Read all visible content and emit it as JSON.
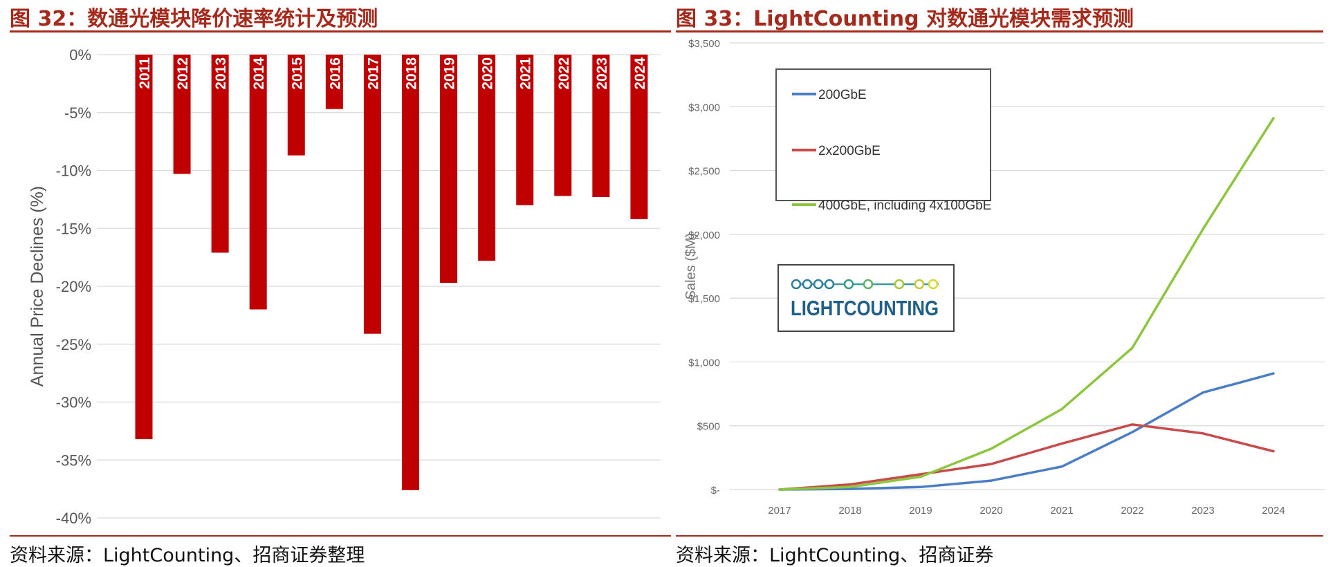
{
  "left": {
    "title": "图 32：数通光模块降价速率统计及预测",
    "source": "资料来源：LightCounting、招商证券整理"
  },
  "right": {
    "title": "图 33：LightCounting 对数通光模块需求预测",
    "source": "资料来源：LightCounting、招商证券",
    "logo_text": "LIGHTCOUNTING"
  },
  "chart_data": [
    {
      "type": "bar",
      "categories": [
        "2011",
        "2012",
        "2013",
        "2014",
        "2015",
        "2016",
        "2017",
        "2018",
        "2019",
        "2020",
        "2021",
        "2022",
        "2023",
        "2024"
      ],
      "values": [
        -33.2,
        -10.3,
        -17.1,
        -22.0,
        -8.7,
        -4.7,
        -24.1,
        -37.6,
        -19.7,
        -17.8,
        -13.0,
        -12.2,
        -12.3,
        -14.2
      ],
      "xlabel": "",
      "ylabel": "Annual Price Declines (%)",
      "ylim": [
        -40,
        0
      ],
      "yticks": [
        0,
        -5,
        -10,
        -15,
        -20,
        -25,
        -30,
        -35,
        -40
      ],
      "ytick_labels": [
        "0%",
        "-5%",
        "-10%",
        "-15%",
        "-20%",
        "-25%",
        "-30%",
        "-35%",
        "-40%"
      ],
      "bar_color": "#c00000",
      "grid": true,
      "labels_inside_bars": true
    },
    {
      "type": "line",
      "x": [
        "2017",
        "2018",
        "2019",
        "2020",
        "2021",
        "2022",
        "2023",
        "2024"
      ],
      "series": [
        {
          "name": "200GbE",
          "color": "#4a7dc4",
          "values": [
            0,
            5,
            20,
            70,
            180,
            450,
            760,
            910
          ]
        },
        {
          "name": "2x200GbE",
          "color": "#c84b4b",
          "values": [
            0,
            40,
            120,
            200,
            360,
            510,
            440,
            300
          ]
        },
        {
          "name": "400GbE, including 4x100GbE",
          "color": "#8cc63f",
          "values": [
            0,
            20,
            100,
            320,
            630,
            1110,
            2040,
            2910
          ]
        }
      ],
      "xlabel": "",
      "ylabel": "Sales ($M)",
      "ylim": [
        0,
        3500
      ],
      "yticks": [
        0,
        500,
        1000,
        1500,
        2000,
        2500,
        3000,
        3500
      ],
      "ytick_labels": [
        "$-",
        "$500",
        "$1,000",
        "$1,500",
        "$2,000",
        "$2,500",
        "$3,000",
        "$3,500"
      ],
      "grid": true,
      "legend": "top-left"
    }
  ]
}
